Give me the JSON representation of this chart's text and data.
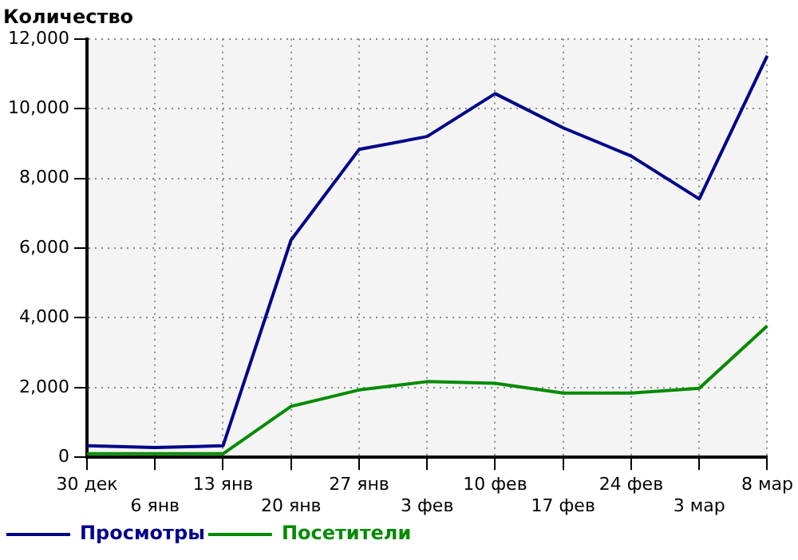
{
  "chart_data": {
    "type": "line",
    "title": "Количество",
    "categories": [
      "30 дек",
      "6 янв",
      "13 янв",
      "20 янв",
      "27 янв",
      "3 фев",
      "10 фев",
      "17 фев",
      "24 фев",
      "3 мар",
      "8 мар"
    ],
    "series": [
      {
        "name": "Просмотры",
        "color": "#00008b",
        "values": [
          330,
          280,
          330,
          6230,
          8830,
          9200,
          10430,
          9450,
          8640,
          7410,
          11520
        ]
      },
      {
        "name": "Посетители",
        "color": "#008b00",
        "values": [
          100,
          100,
          100,
          1460,
          1930,
          2170,
          2120,
          1840,
          1840,
          1980,
          3770
        ]
      }
    ],
    "ylim": [
      0,
      12000
    ],
    "yticks": [
      0,
      {
        "value": 2000,
        "label": "2,000"
      },
      {
        "value": 4000,
        "label": "4,000"
      },
      {
        "value": 6000,
        "label": "6,000"
      },
      {
        "value": 8000,
        "label": "8,000"
      },
      {
        "value": 10000,
        "label": "10,000"
      },
      {
        "value": 12000,
        "label": "12,000"
      }
    ],
    "grid": true,
    "legend": "bottom left",
    "marker": "none",
    "line_style": "solid"
  }
}
